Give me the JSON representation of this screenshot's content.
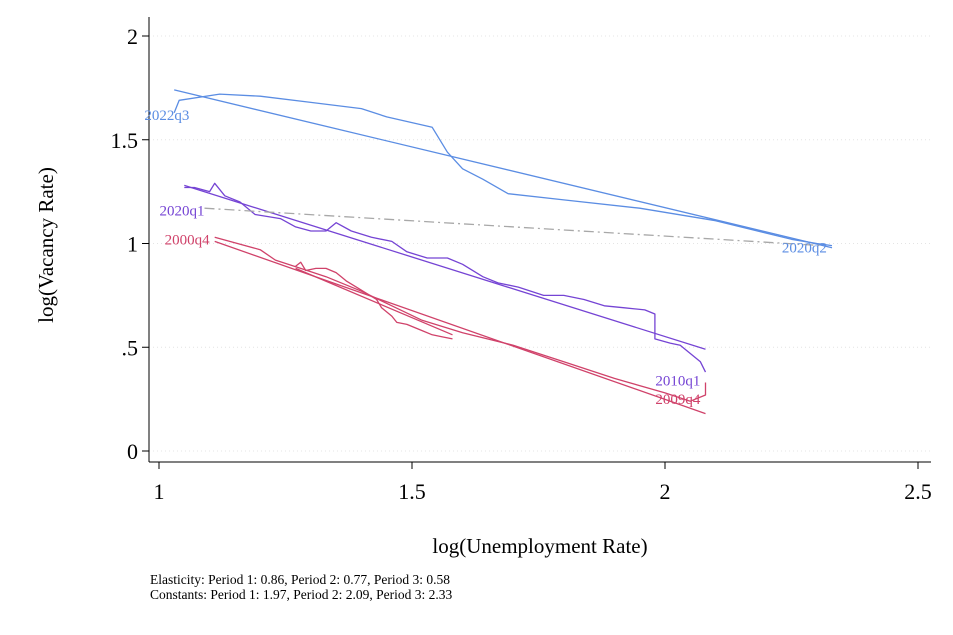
{
  "chart_data": {
    "type": "line",
    "title": "",
    "xlabel": "log(Unemployment Rate)",
    "ylabel": "log(Vacancy Rate)",
    "xlim": [
      0.98,
      2.54
    ],
    "ylim": [
      -0.06,
      2.03
    ],
    "x_ticks": [
      {
        "value": 1,
        "label": "1"
      },
      {
        "value": 1.5,
        "label": "1.5"
      },
      {
        "value": 2,
        "label": "2"
      },
      {
        "value": 2.5,
        "label": "2.5"
      }
    ],
    "y_ticks": [
      {
        "value": 0,
        "label": "0"
      },
      {
        "value": 0.5,
        "label": ".5"
      },
      {
        "value": 1,
        "label": "1"
      },
      {
        "value": 1.5,
        "label": "1.5"
      },
      {
        "value": 2,
        "label": "2"
      }
    ],
    "grid": "horizontal dotted",
    "legend": "none",
    "series": [
      {
        "role": "period-1-data",
        "color": "#d0426a",
        "points": [
          [
            1.11,
            1.03
          ],
          [
            1.2,
            0.97
          ],
          [
            1.23,
            0.92
          ],
          [
            1.28,
            0.88
          ],
          [
            1.33,
            0.84
          ],
          [
            1.4,
            0.77
          ],
          [
            1.46,
            0.7
          ],
          [
            1.52,
            0.63
          ],
          [
            1.6,
            0.57
          ],
          [
            1.7,
            0.51
          ],
          [
            1.8,
            0.43
          ],
          [
            1.9,
            0.35
          ],
          [
            2.0,
            0.28
          ],
          [
            2.05,
            0.24
          ],
          [
            2.08,
            0.27
          ],
          [
            2.08,
            0.33
          ]
        ]
      },
      {
        "role": "period-1-fit",
        "color": "#d0426a",
        "points": [
          [
            1.11,
            1.01
          ],
          [
            2.08,
            0.18
          ]
        ]
      },
      {
        "role": "period-1-data",
        "color": "#d0426a",
        "points": [
          [
            1.27,
            0.89
          ],
          [
            1.28,
            0.91
          ],
          [
            1.29,
            0.87
          ],
          [
            1.31,
            0.88
          ],
          [
            1.33,
            0.88
          ],
          [
            1.35,
            0.86
          ],
          [
            1.36,
            0.84
          ],
          [
            1.37,
            0.82
          ],
          [
            1.39,
            0.79
          ],
          [
            1.41,
            0.76
          ],
          [
            1.43,
            0.73
          ],
          [
            1.44,
            0.69
          ],
          [
            1.46,
            0.65
          ],
          [
            1.47,
            0.62
          ],
          [
            1.49,
            0.61
          ],
          [
            1.52,
            0.58
          ],
          [
            1.54,
            0.56
          ],
          [
            1.56,
            0.55
          ],
          [
            1.58,
            0.54
          ]
        ]
      },
      {
        "role": "period-1-fit",
        "color": "#d0426a",
        "points": [
          [
            1.27,
            0.88
          ],
          [
            1.58,
            0.56
          ]
        ]
      },
      {
        "role": "period-2-data",
        "color": "#7544d4",
        "points": [
          [
            1.05,
            1.27
          ],
          [
            1.07,
            1.27
          ],
          [
            1.1,
            1.25
          ],
          [
            1.11,
            1.29
          ],
          [
            1.13,
            1.23
          ],
          [
            1.16,
            1.2
          ],
          [
            1.19,
            1.14
          ],
          [
            1.24,
            1.12
          ],
          [
            1.27,
            1.08
          ],
          [
            1.3,
            1.06
          ],
          [
            1.33,
            1.06
          ],
          [
            1.35,
            1.1
          ],
          [
            1.38,
            1.06
          ],
          [
            1.42,
            1.03
          ],
          [
            1.46,
            1.01
          ],
          [
            1.49,
            0.96
          ],
          [
            1.53,
            0.93
          ],
          [
            1.57,
            0.93
          ],
          [
            1.6,
            0.9
          ],
          [
            1.64,
            0.84
          ],
          [
            1.67,
            0.81
          ],
          [
            1.71,
            0.79
          ],
          [
            1.76,
            0.75
          ],
          [
            1.8,
            0.75
          ],
          [
            1.84,
            0.73
          ],
          [
            1.88,
            0.7
          ],
          [
            1.92,
            0.69
          ],
          [
            1.96,
            0.68
          ],
          [
            1.98,
            0.66
          ],
          [
            1.98,
            0.54
          ],
          [
            2.01,
            0.52
          ],
          [
            2.03,
            0.51
          ],
          [
            2.05,
            0.47
          ],
          [
            2.07,
            0.43
          ],
          [
            2.08,
            0.38
          ]
        ]
      },
      {
        "role": "period-2-fit",
        "color": "#7544d4",
        "points": [
          [
            1.05,
            1.28
          ],
          [
            2.08,
            0.49
          ]
        ]
      },
      {
        "role": "period-3-data",
        "color": "#5b8de3",
        "points": [
          [
            1.03,
            1.63
          ],
          [
            1.04,
            1.69
          ],
          [
            1.12,
            1.72
          ],
          [
            1.2,
            1.71
          ],
          [
            1.3,
            1.68
          ],
          [
            1.4,
            1.65
          ],
          [
            1.45,
            1.61
          ],
          [
            1.54,
            1.56
          ],
          [
            1.57,
            1.44
          ],
          [
            1.6,
            1.36
          ],
          [
            1.64,
            1.31
          ],
          [
            1.69,
            1.24
          ],
          [
            1.8,
            1.21
          ],
          [
            1.95,
            1.17
          ],
          [
            2.1,
            1.11
          ],
          [
            2.2,
            1.05
          ],
          [
            2.25,
            1.02
          ],
          [
            2.3,
            1.0
          ],
          [
            2.33,
            0.99
          ]
        ]
      },
      {
        "role": "period-3-fit",
        "color": "#5b8de3",
        "points": [
          [
            1.03,
            1.74
          ],
          [
            2.33,
            0.98
          ]
        ]
      },
      {
        "role": "covid-transition",
        "color": "#a8a8a8",
        "dash": "dash-dot",
        "points": [
          [
            1.09,
            1.17
          ],
          [
            2.31,
            0.99
          ]
        ]
      }
    ],
    "annotations": [
      {
        "text": "2022q3",
        "x": 1.06,
        "y": 1.62,
        "color": "#5b8de3"
      },
      {
        "text": "2020q1",
        "x": 1.09,
        "y": 1.16,
        "color": "#7544d4"
      },
      {
        "text": "2000q4",
        "x": 1.1,
        "y": 1.02,
        "color": "#d0426a"
      },
      {
        "text": "2020q2",
        "x": 2.32,
        "y": 0.98,
        "color": "#5b8de3"
      },
      {
        "text": "2010q1",
        "x": 2.07,
        "y": 0.34,
        "color": "#7544d4"
      },
      {
        "text": "2009q4",
        "x": 2.07,
        "y": 0.25,
        "color": "#d0426a"
      }
    ]
  },
  "notes": {
    "line1": "Elasticity: Period 1:  0.86, Period 2:  0.77, Period 3:  0.58",
    "line2": "Constants: Period 1:  1.97, Period 2:  2.09, Period 3:  2.33"
  }
}
